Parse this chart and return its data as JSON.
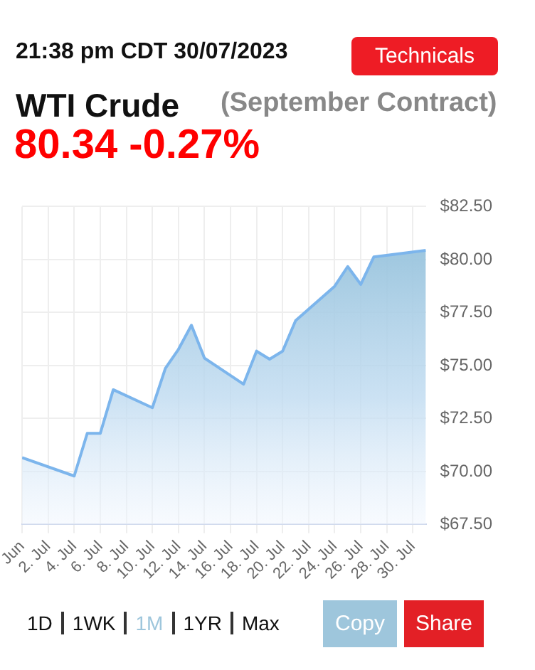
{
  "chart_data": {
    "type": "area",
    "title": "WTI Crude",
    "subtitle": "(September Contract)",
    "annotations": [
      "21:38 pm CDT 30/07/2023",
      "Technicals",
      "80.34 -0.27%",
      "1D",
      "1WK",
      "1M",
      "1YR",
      "Max",
      "Copy",
      "Share"
    ],
    "x": [
      "2023-06-30",
      "2023-07-04",
      "2023-07-05",
      "2023-07-06",
      "2023-07-07",
      "2023-07-10",
      "2023-07-11",
      "2023-07-12",
      "2023-07-13",
      "2023-07-14",
      "2023-07-17",
      "2023-07-18",
      "2023-07-19",
      "2023-07-20",
      "2023-07-21",
      "2023-07-24",
      "2023-07-25",
      "2023-07-26",
      "2023-07-27",
      "2023-07-31"
    ],
    "series": [
      {
        "color": "#7cb5ec",
        "values": [
          70.66,
          69.79,
          71.8,
          71.8,
          73.86,
          73.01,
          74.87,
          75.76,
          76.9,
          75.35,
          74.12,
          75.68,
          75.3,
          75.68,
          77.12,
          78.74,
          79.67,
          78.83,
          80.12,
          80.43
        ]
      }
    ],
    "xlim": [
      "2023-06-30",
      "2023-07-31"
    ],
    "xticks": [
      {
        "value": "2023-06-30",
        "label": "Jun"
      },
      {
        "value": "2023-07-02",
        "label": "2. Jul"
      },
      {
        "value": "2023-07-04",
        "label": "4. Jul"
      },
      {
        "value": "2023-07-06",
        "label": "6. Jul"
      },
      {
        "value": "2023-07-08",
        "label": "8. Jul"
      },
      {
        "value": "2023-07-10",
        "label": "10. Jul"
      },
      {
        "value": "2023-07-12",
        "label": "12. Jul"
      },
      {
        "value": "2023-07-14",
        "label": "14. Jul"
      },
      {
        "value": "2023-07-16",
        "label": "16. Jul"
      },
      {
        "value": "2023-07-18",
        "label": "18. Jul"
      },
      {
        "value": "2023-07-20",
        "label": "20. Jul"
      },
      {
        "value": "2023-07-22",
        "label": "22. Jul"
      },
      {
        "value": "2023-07-24",
        "label": "24. Jul"
      },
      {
        "value": "2023-07-26",
        "label": "26. Jul"
      },
      {
        "value": "2023-07-28",
        "label": "28. Jul"
      },
      {
        "value": "2023-07-30",
        "label": "30. Jul"
      }
    ],
    "ylim": [
      67.5,
      82.5
    ],
    "yticks": [
      {
        "value": 67.5,
        "label": "$67.50"
      },
      {
        "value": 70,
        "label": "$70.00"
      },
      {
        "value": 72.5,
        "label": "$72.50"
      },
      {
        "value": 75,
        "label": "$75.00"
      },
      {
        "value": 77.5,
        "label": "$77.50"
      },
      {
        "value": 80,
        "label": "$80.00"
      },
      {
        "value": 82.5,
        "label": "$82.50"
      }
    ],
    "grid": true,
    "legend": false
  }
}
